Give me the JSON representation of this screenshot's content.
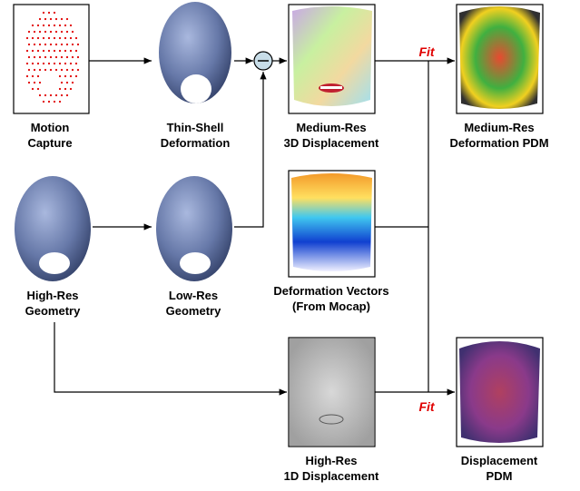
{
  "nodes": [
    {
      "label": [
        "Motion",
        "Capture"
      ]
    },
    {
      "label": [
        "Thin-Shell",
        "Deformation"
      ]
    },
    {
      "label": [
        "Medium-Res",
        "3D Displacement"
      ]
    },
    {
      "label": [
        "Medium-Res",
        "Deformation PDM"
      ]
    },
    {
      "label": [
        "High-Res",
        "Geometry"
      ]
    },
    {
      "label": [
        "Low-Res",
        "Geometry"
      ]
    },
    {
      "label": [
        "Deformation Vectors",
        "(From Mocap)"
      ]
    },
    {
      "label": [
        "High-Res",
        "1D Displacement"
      ]
    },
    {
      "label": [
        "Displacement",
        "PDM"
      ]
    }
  ],
  "edge_labels": [
    "Fit",
    "Fit"
  ]
}
